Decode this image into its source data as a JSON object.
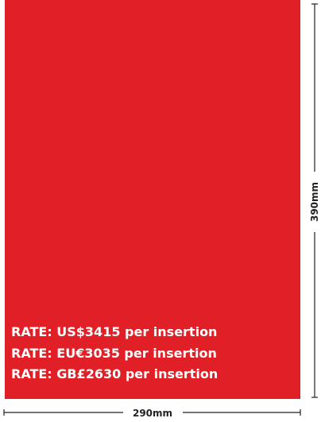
{
  "rates": [
    "RATE: US$3415 per insertion",
    "RATE: EU€3035 per insertion",
    "RATE: GB£2630 per insertion"
  ],
  "width_label": "290mm",
  "height_label": "390mm"
}
